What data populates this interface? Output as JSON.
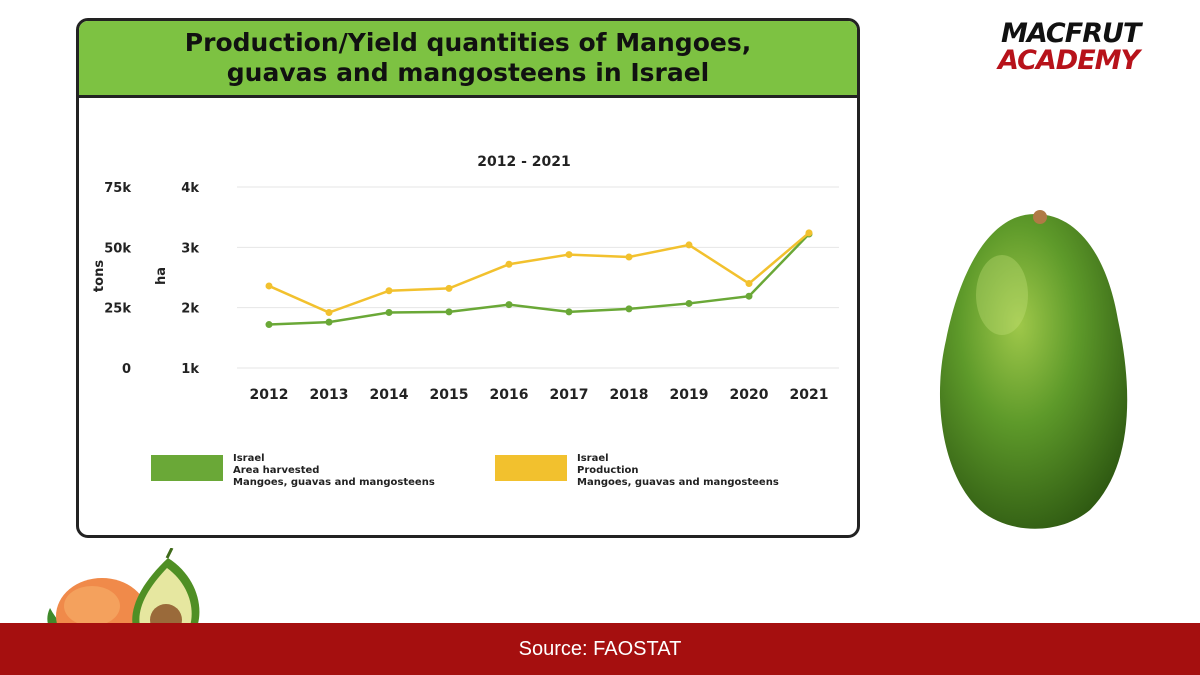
{
  "card": {
    "title": "Production/Yield quantities of Mangoes, guavas and mangosteens in Israel"
  },
  "logo": {
    "line1": "MACFRUT",
    "line2": "ACADEMY"
  },
  "footer": {
    "source": "Source: FAOSTAT"
  },
  "colors": {
    "header_bg": "#7dc242",
    "area_series": "#6aa837",
    "production_series": "#f2c12e",
    "footer_bg": "#a50f0f",
    "logo_red": "#b7121a"
  },
  "chart_data": {
    "type": "line",
    "subtitle": "2012 - 2021",
    "categories": [
      "2012",
      "2013",
      "2014",
      "2015",
      "2016",
      "2017",
      "2018",
      "2019",
      "2020",
      "2021"
    ],
    "left_axis": {
      "label": "tons",
      "ticks": [
        "0",
        "25k",
        "50k",
        "75k"
      ],
      "range": [
        0,
        75000
      ]
    },
    "right_axis": {
      "label": "ha",
      "ticks": [
        "1k",
        "2k",
        "3k",
        "4k"
      ],
      "range": [
        1000,
        4000
      ]
    },
    "grid": true,
    "legend_position": "bottom",
    "series": [
      {
        "name": "Israel Area harvested Mangoes, guavas and mangosteens",
        "legend_lines": [
          "Israel",
          "Area harvested",
          "Mangoes, guavas and mangosteens"
        ],
        "axis": "ha",
        "color": "#6aa837",
        "values": [
          1720,
          1760,
          1920,
          1930,
          2050,
          1930,
          1980,
          2070,
          2190,
          3220
        ]
      },
      {
        "name": "Israel Production Mangoes, guavas and mangosteens",
        "legend_lines": [
          "Israel",
          "Production",
          "Mangoes, guavas and mangosteens"
        ],
        "axis": "tons",
        "color": "#f2c12e",
        "values": [
          34000,
          23000,
          32000,
          33000,
          43000,
          47000,
          46000,
          51000,
          35000,
          56000
        ]
      }
    ]
  }
}
